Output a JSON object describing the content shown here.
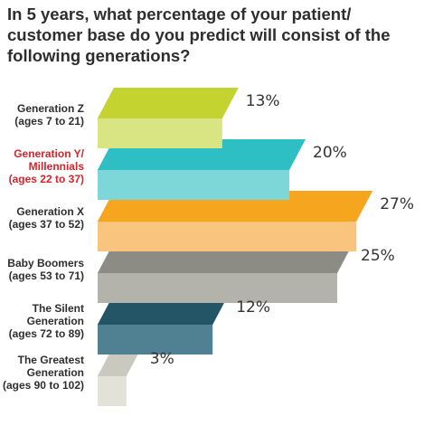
{
  "chart_data": {
    "type": "bar",
    "title": "In 5 years, what percentage of your patient/ customer base do you predict will consist of the following generations?",
    "categories": [
      [
        "Generation Z",
        "(ages 7 to 21)"
      ],
      [
        "Generation Y/",
        "Millennials",
        "(ages 22 to 37)"
      ],
      [
        "Generation X",
        "(ages 37 to 52)"
      ],
      [
        "Baby Boomers",
        "(ages 53 to 71)"
      ],
      [
        "The Silent",
        "Generation",
        "(ages 72 to 89)"
      ],
      [
        "The Greatest",
        "Generation",
        "(ages 90 to 102)"
      ]
    ],
    "values": [
      13,
      20,
      27,
      25,
      12,
      3
    ],
    "value_labels": [
      "13%",
      "20%",
      "27%",
      "25%",
      "12%",
      "3%"
    ],
    "unit": "%",
    "colors": [
      {
        "top": "#c5d330",
        "front": "#d9e483",
        "side": "#9aa51f"
      },
      {
        "top": "#2ebfc4",
        "front": "#7dd6d8",
        "side": "#22989c"
      },
      {
        "top": "#f6a51e",
        "front": "#f9c47d",
        "side": "#cf860c"
      },
      {
        "top": "#8c8c84",
        "front": "#b3b3ab",
        "side": "#6c6c65"
      },
      {
        "top": "#245567",
        "front": "#4f8193",
        "side": "#1a3f4d"
      },
      {
        "top": "#c9c9bf",
        "front": "#e2e2d9",
        "side": "#a6a69c"
      }
    ],
    "label_colors": [
      "#2e2e2e",
      "#d4242a",
      "#2e2e2e",
      "#2e2e2e",
      "#2e2e2e",
      "#2e2e2e"
    ],
    "legend": "none",
    "grid": false
  }
}
